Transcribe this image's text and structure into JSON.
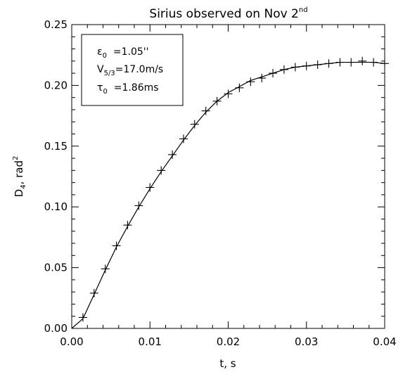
{
  "chart_data": {
    "type": "scatter",
    "title": "Sirius observed on Nov 2",
    "title_superscript": "nd",
    "xlabel": "t, s",
    "ylabel": "D",
    "ylabel_subscript": "4",
    "ylabel_suffix": ", rad",
    "ylabel_superscript": "2",
    "xlim": [
      0.0,
      0.04
    ],
    "ylim": [
      0.0,
      0.25
    ],
    "xticks": [
      "0.00",
      "0.01",
      "0.02",
      "0.03",
      "0.04"
    ],
    "yticks": [
      "0.00",
      "0.05",
      "0.10",
      "0.15",
      "0.20",
      "0.25"
    ],
    "grid": false,
    "legend_placement": "top-left",
    "legend": {
      "line1_prefix": "ε",
      "line1_sub": "0",
      "line1_value": "  =1.05''",
      "line2_prefix": "V",
      "line2_sub": "5/3",
      "line2_value": "=17.0m/s",
      "line3_prefix": "τ",
      "line3_sub": "0",
      "line3_value": "  =1.86ms"
    },
    "series": [
      {
        "kind": "points",
        "marker": "plus",
        "x": [
          0.00143,
          0.00286,
          0.00429,
          0.00571,
          0.00714,
          0.00857,
          0.01,
          0.01143,
          0.01286,
          0.01429,
          0.01571,
          0.01714,
          0.01857,
          0.02,
          0.02143,
          0.02286,
          0.02429,
          0.02571,
          0.02714,
          0.02857,
          0.03,
          0.03143,
          0.03286,
          0.03429,
          0.03571,
          0.03714,
          0.03857,
          0.04
        ],
        "y": [
          0.009,
          0.029,
          0.049,
          0.068,
          0.085,
          0.101,
          0.116,
          0.13,
          0.143,
          0.156,
          0.168,
          0.179,
          0.187,
          0.193,
          0.198,
          0.203,
          0.206,
          0.21,
          0.213,
          0.215,
          0.216,
          0.217,
          0.218,
          0.219,
          0.219,
          0.22,
          0.219,
          0.218
        ]
      },
      {
        "kind": "fit-line",
        "x": [
          0.0,
          0.00143,
          0.00286,
          0.00429,
          0.00571,
          0.00714,
          0.00857,
          0.01,
          0.01143,
          0.01286,
          0.01429,
          0.01571,
          0.01714,
          0.01857,
          0.02,
          0.02143,
          0.02286,
          0.02429,
          0.02571,
          0.02714,
          0.02857,
          0.03,
          0.03143,
          0.03286,
          0.03429,
          0.03571,
          0.03714,
          0.03857,
          0.04
        ],
        "y": [
          0.0,
          0.008,
          0.028,
          0.048,
          0.067,
          0.084,
          0.1,
          0.115,
          0.129,
          0.142,
          0.155,
          0.167,
          0.178,
          0.187,
          0.194,
          0.199,
          0.204,
          0.207,
          0.21,
          0.213,
          0.215,
          0.216,
          0.217,
          0.218,
          0.219,
          0.219,
          0.219,
          0.219,
          0.218
        ]
      }
    ]
  }
}
